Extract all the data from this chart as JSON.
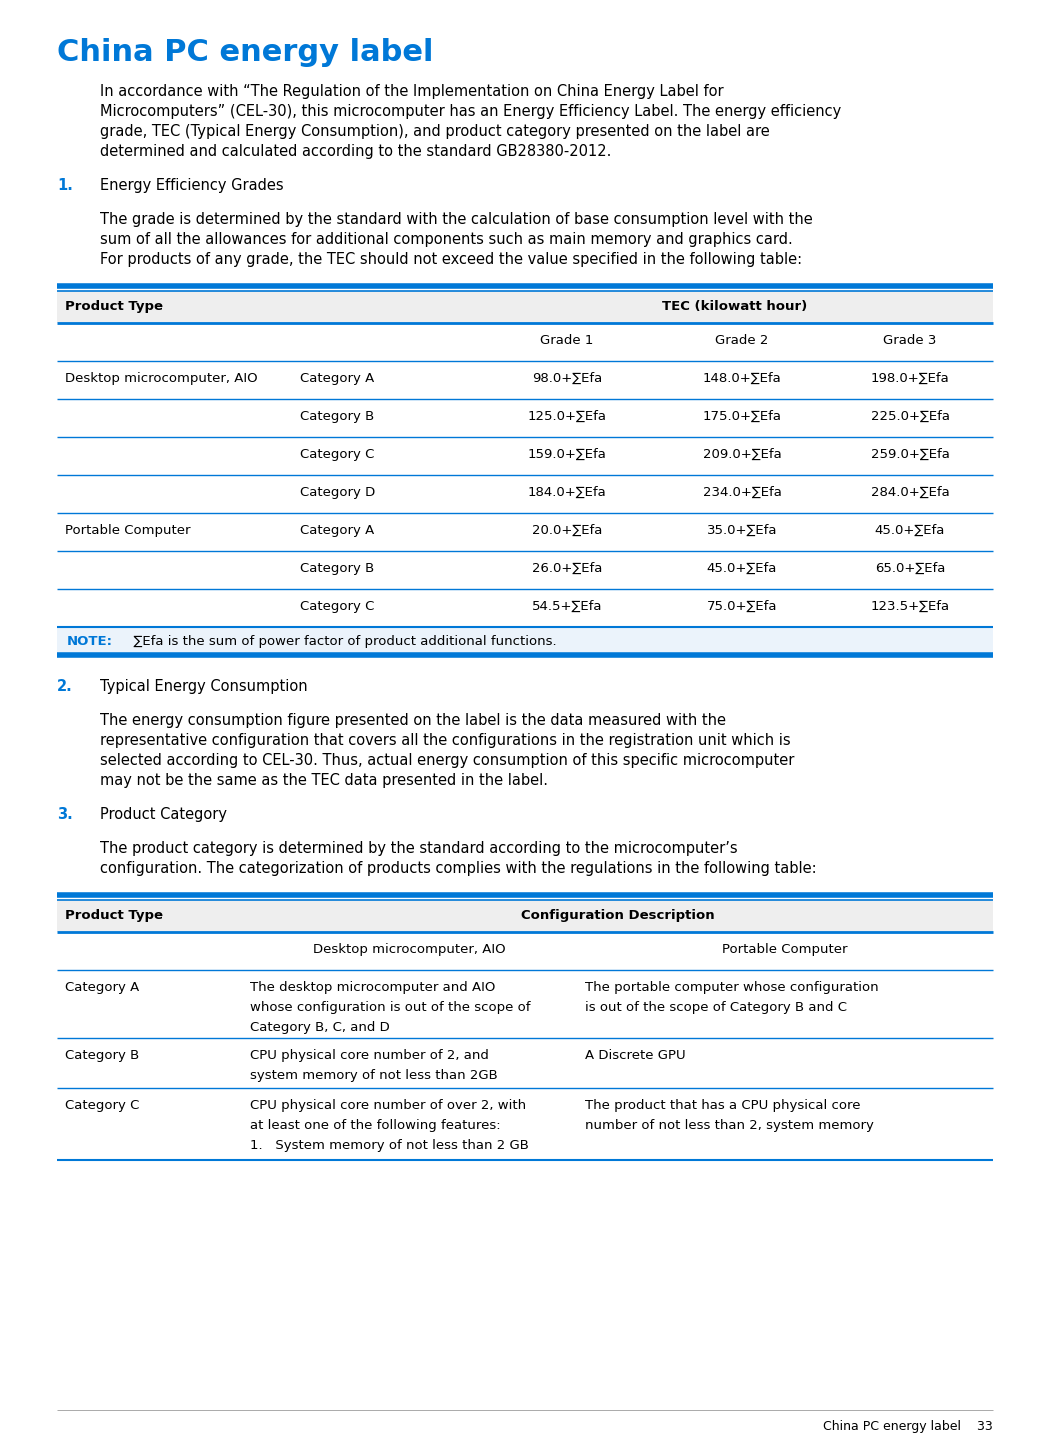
{
  "title": "China PC energy label",
  "title_color": "#0078D7",
  "title_fontsize": 22,
  "body_fontsize": 10.5,
  "intro_text": "In accordance with “The Regulation of the Implementation on China Energy Label for\nMicrocomputers” (CEL-30), this microcomputer has an Energy Efficiency Label. The energy efficiency\ngrade, TEC (Typical Energy Consumption), and product category presented on the label are\ndetermined and calculated according to the standard GB28380-2012.",
  "section1_num": "1.",
  "section1_title": "Energy Efficiency Grades",
  "section1_intro": "The grade is determined by the standard with the calculation of base consumption level with the\nsum of all the allowances for additional components such as main memory and graphics card.\nFor products of any grade, the TEC should not exceed the value specified in the following table:",
  "table1_header_col1": "Product Type",
  "table1_header_col2": "TEC (kilowatt hour)",
  "table1_subheader": [
    "Grade 1",
    "Grade 2",
    "Grade 3"
  ],
  "table1_rows": [
    [
      "Desktop microcomputer, AIO",
      "Category A",
      "98.0+∑Efa",
      "148.0+∑Efa",
      "198.0+∑Efa"
    ],
    [
      "",
      "Category B",
      "125.0+∑Efa",
      "175.0+∑Efa",
      "225.0+∑Efa"
    ],
    [
      "",
      "Category C",
      "159.0+∑Efa",
      "209.0+∑Efa",
      "259.0+∑Efa"
    ],
    [
      "",
      "Category D",
      "184.0+∑Efa",
      "234.0+∑Efa",
      "284.0+∑Efa"
    ],
    [
      "Portable Computer",
      "Category A",
      "20.0+∑Efa",
      "35.0+∑Efa",
      "45.0+∑Efa"
    ],
    [
      "",
      "Category B",
      "26.0+∑Efa",
      "45.0+∑Efa",
      "65.0+∑Efa"
    ],
    [
      "",
      "Category C",
      "54.5+∑Efa",
      "75.0+∑Efa",
      "123.5+∑Efa"
    ]
  ],
  "table1_note_label": "NOTE:",
  "table1_note_text": "  ∑Efa is the sum of power factor of product additional functions.",
  "section2_num": "2.",
  "section2_title": "Typical Energy Consumption",
  "section2_text": "The energy consumption figure presented on the label is the data measured with the\nrepresentative configuration that covers all the configurations in the registration unit which is\nselected according to CEL-30. Thus, actual energy consumption of this specific microcomputer\nmay not be the same as the TEC data presented in the label.",
  "section3_num": "3.",
  "section3_title": "Product Category",
  "section3_intro": "The product category is determined by the standard according to the microcomputer’s\nconfiguration. The categorization of products complies with the regulations in the following table:",
  "table2_header_col1": "Product Type",
  "table2_header_col2": "Configuration Description",
  "table2_subheader": [
    "Desktop microcomputer, AIO",
    "Portable Computer"
  ],
  "table2_rows": [
    [
      "Category A",
      "The desktop microcomputer and AIO\nwhose configuration is out of the scope of\nCategory B, C, and D",
      "The portable computer whose configuration\nis out of the scope of Category B and C"
    ],
    [
      "Category B",
      "CPU physical core number of 2, and\nsystem memory of not less than 2GB",
      "A Discrete GPU"
    ],
    [
      "Category C",
      "CPU physical core number of over 2, with\nat least one of the following features:\n1.   System memory of not less than 2 GB",
      "The product that has a CPU physical core\nnumber of not less than 2, system memory"
    ]
  ],
  "footer_text": "China PC energy label    33",
  "blue_color": "#0078D7",
  "black_color": "#000000",
  "line_color": "#0078D7"
}
